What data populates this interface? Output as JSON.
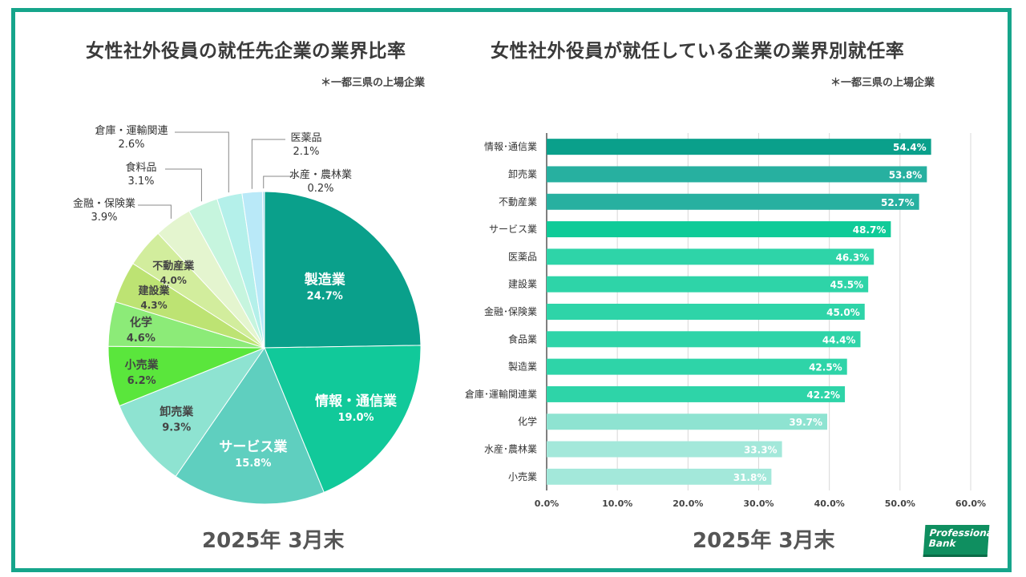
{
  "left_title": "女性社外役員の就任先企業の業界比率",
  "left_note": "＊一都三県の上場企業",
  "left_footer": "2025年 3月末",
  "right_title": "女性社外役員が就任している企業の業界別就任率",
  "right_note": "＊一都三県の上場企業",
  "right_footer": "2025年 3月末",
  "logo": {
    "line1": "Professional",
    "line2": "Bank"
  },
  "colors": {
    "frame": "#16a58b"
  },
  "chart_data": [
    {
      "type": "pie",
      "title": "女性社外役員の就任先企業の業界比率",
      "slices": [
        {
          "label": "製造業",
          "value": 24.7,
          "display": "24.7%",
          "color": "#0aa08b"
        },
        {
          "label": "情報・通信業",
          "value": 19.0,
          "display": "19.0%",
          "color": "#11c99a"
        },
        {
          "label": "サービス業",
          "value": 15.8,
          "display": "15.8%",
          "color": "#5fcfbf"
        },
        {
          "label": "卸売業",
          "value": 9.3,
          "display": "9.3%",
          "color": "#8ee3d1"
        },
        {
          "label": "小売業",
          "value": 6.2,
          "display": "6.2%",
          "color": "#5ae63c"
        },
        {
          "label": "化学",
          "value": 4.6,
          "display": "4.6%",
          "color": "#8ceb78"
        },
        {
          "label": "建設業",
          "value": 4.3,
          "display": "4.3%",
          "color": "#bde373"
        },
        {
          "label": "不動産業",
          "value": 4.0,
          "display": "4.0%",
          "color": "#d2ed9d"
        },
        {
          "label": "金融・保険業",
          "value": 3.9,
          "display": "3.9%",
          "color": "#e4f5cf"
        },
        {
          "label": "食料品",
          "value": 3.1,
          "display": "3.1%",
          "color": "#c6f5de"
        },
        {
          "label": "倉庫・運輸関連",
          "value": 2.6,
          "display": "2.6%",
          "color": "#b4f0ea"
        },
        {
          "label": "医薬品",
          "value": 2.1,
          "display": "2.1%",
          "color": "#b9e9f8"
        },
        {
          "label": "水産・農林業",
          "value": 0.2,
          "display": "0.2%",
          "color": "#a8dcf0"
        }
      ]
    },
    {
      "type": "bar",
      "orientation": "horizontal",
      "title": "女性社外役員が就任している企業の業界別就任率",
      "categories": [
        "情報･通信業",
        "卸売業",
        "不動産業",
        "サービス業",
        "医薬品",
        "建設業",
        "金融･保険業",
        "食品業",
        "製造業",
        "倉庫･運輸関連業",
        "化学",
        "水産･農林業",
        "小売業"
      ],
      "values": [
        54.4,
        53.8,
        52.7,
        48.7,
        46.3,
        45.5,
        45.0,
        44.4,
        42.5,
        42.2,
        39.7,
        33.3,
        31.8
      ],
      "value_labels": [
        "54.4%",
        "53.8%",
        "52.7%",
        "48.7%",
        "46.3%",
        "45.5%",
        "45.0%",
        "44.4%",
        "42.5%",
        "42.2%",
        "39.7%",
        "33.3%",
        "31.8%"
      ],
      "bar_colors": [
        "#0aa08b",
        "#27b0a0",
        "#27b0a0",
        "#0fcb98",
        "#2ed4a8",
        "#2ed4a8",
        "#2ed4a8",
        "#2ed4a8",
        "#2ed4a8",
        "#2ed4a8",
        "#8ee3d1",
        "#a3e8da",
        "#a3e8da"
      ],
      "xlim": [
        0,
        60
      ],
      "xticks": [
        "0.0%",
        "10.0%",
        "20.0%",
        "30.0%",
        "40.0%",
        "50.0%",
        "60.0%"
      ],
      "grid": true
    }
  ]
}
